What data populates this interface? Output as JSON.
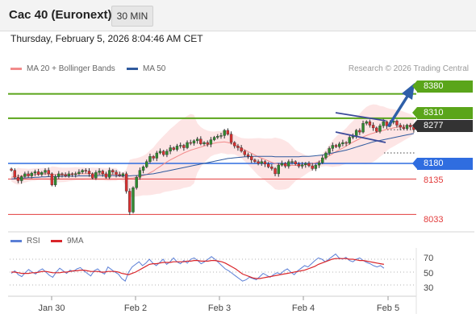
{
  "header": {
    "title": "Cac 40 (Euronext)",
    "timeframe": "30 MIN",
    "datetime": "Thursday, February 5, 2026 8:04:46 AM CET"
  },
  "legend": {
    "ma20_label": "MA 20 + Bollinger Bands",
    "ma50_label": "MA 50",
    "ma20_color": "#f28b8b",
    "ma50_color": "#2f5a9e",
    "copyright": "Research © 2026 Trading Central"
  },
  "rsi_legend": {
    "rsi_label": "RSI",
    "ma9_label": "9MA",
    "rsi_color": "#5b7fd6",
    "ma9_color": "#d9252a"
  },
  "chart_data": [
    {
      "type": "candlestick",
      "title": "Cac 40 (Euronext)",
      "x_ticks": [
        "Jan 30",
        "Feb 2",
        "Feb 3",
        "Feb 4",
        "Feb 5"
      ],
      "price_levels": [
        {
          "value": 8380,
          "label": "8380",
          "style": "green-tag",
          "color": "#5aa51a"
        },
        {
          "value": 8310,
          "label": "8310",
          "style": "green-tag",
          "color": "#5aa51a"
        },
        {
          "value": 8277,
          "label": "8277",
          "style": "last-price",
          "color": "#333333"
        },
        {
          "value": 8180,
          "label": "8180",
          "style": "blue-tag",
          "color": "#2f6de0"
        },
        {
          "value": 8135,
          "label": "8135",
          "style": "red-text",
          "color": "#e23b3b"
        },
        {
          "value": 8033,
          "label": "8033",
          "style": "red-text",
          "color": "#e23b3b"
        }
      ],
      "ylim": [
        7990,
        8430
      ],
      "close": [
        8160,
        8140,
        8130,
        8142,
        8150,
        8144,
        8152,
        8156,
        8148,
        8154,
        8160,
        8150,
        8118,
        8142,
        8150,
        8148,
        8144,
        8150,
        8148,
        8150,
        8155,
        8160,
        8158,
        8150,
        8138,
        8154,
        8158,
        8150,
        8140,
        8160,
        8155,
        8148,
        8145,
        8150,
        8100,
        8040,
        8110,
        8140,
        8160,
        8170,
        8185,
        8200,
        8195,
        8210,
        8215,
        8205,
        8215,
        8225,
        8220,
        8230,
        8232,
        8225,
        8240,
        8238,
        8245,
        8250,
        8236,
        8240,
        8235,
        8248,
        8255,
        8258,
        8260,
        8275,
        8264,
        8240,
        8230,
        8225,
        8215,
        8205,
        8200,
        8190,
        8185,
        8180,
        8185,
        8178,
        8170,
        8165,
        8150,
        8175,
        8180,
        8172,
        8185,
        8185,
        8178,
        8172,
        8176,
        8180,
        8173,
        8165,
        8175,
        8182,
        8196,
        8210,
        8223,
        8232,
        8228,
        8236,
        8240,
        8238,
        8255,
        8258,
        8275,
        8270,
        8295,
        8300,
        8290,
        8282,
        8272,
        8288,
        8300,
        8288,
        8298,
        8302,
        8290,
        8284,
        8280,
        8290,
        8285,
        8277
      ],
      "ma20": [
        8140,
        8142,
        8143,
        8144,
        8145,
        8146,
        8147,
        8148,
        8149,
        8150,
        8150,
        8149,
        8148,
        8148,
        8147,
        8147,
        8147,
        8148,
        8149,
        8150,
        8150,
        8150,
        8150,
        8150,
        8150,
        8149,
        8149,
        8149,
        8148,
        8148,
        8148,
        8148,
        8145,
        8141,
        8138,
        8137,
        8138,
        8140,
        8142,
        8145,
        8148,
        8153,
        8158,
        8165,
        8171,
        8178,
        8184,
        8190,
        8195,
        8200,
        8205,
        8210,
        8214,
        8218,
        8221,
        8224,
        8227,
        8230,
        8233,
        8236,
        8238,
        8240,
        8241,
        8242,
        8240,
        8237,
        8234,
        8229,
        8224,
        8219,
        8214,
        8209,
        8204,
        8199,
        8195,
        8191,
        8187,
        8183,
        8180,
        8178,
        8177,
        8175,
        8174,
        8174,
        8174,
        8174,
        8175,
        8176,
        8178,
        8180,
        8182,
        8185,
        8190,
        8196,
        8202,
        8208,
        8214,
        8219,
        8224,
        8230,
        8236,
        8241,
        8246,
        8251,
        8256,
        8260,
        8264,
        8267,
        8270,
        8272,
        8275,
        8278,
        8280,
        8282,
        8284,
        8286,
        8287,
        8288,
        8289,
        8290
      ],
      "ma50": [
        8135,
        8136,
        8137,
        8138,
        8138,
        8139,
        8139,
        8140,
        8140,
        8141,
        8141,
        8142,
        8142,
        8142,
        8142,
        8143,
        8143,
        8143,
        8143,
        8143,
        8144,
        8144,
        8144,
        8144,
        8144,
        8144,
        8145,
        8145,
        8145,
        8145,
        8145,
        8144,
        8144,
        8144,
        8144,
        8144,
        8145,
        8145,
        8146,
        8147,
        8148,
        8149,
        8150,
        8152,
        8154,
        8156,
        8158,
        8160,
        8162,
        8164,
        8166,
        8168,
        8170,
        8172,
        8174,
        8176,
        8178,
        8180,
        8182,
        8184,
        8186,
        8188,
        8190,
        8192,
        8194,
        8195,
        8196,
        8197,
        8198,
        8199,
        8199,
        8200,
        8200,
        8200,
        8200,
        8200,
        8200,
        8200,
        8199,
        8199,
        8199,
        8199,
        8199,
        8199,
        8199,
        8199,
        8200,
        8200,
        8200,
        8201,
        8202,
        8203,
        8204,
        8206,
        8208,
        8210,
        8212,
        8214,
        8216,
        8218,
        8221,
        8224,
        8227,
        8230,
        8233,
        8236,
        8239,
        8242,
        8244,
        8246,
        8248,
        8250,
        8252,
        8254,
        8256,
        8258,
        8260,
        8262,
        8264,
        8266
      ],
      "annotations": [
        "converging wedge lines",
        "bullish arrow toward 8380"
      ]
    },
    {
      "type": "line",
      "title": "RSI",
      "y_ticks": [
        70,
        50,
        30
      ],
      "ylim": [
        15,
        85
      ],
      "reference_lines": [
        70,
        50,
        30
      ],
      "series": [
        {
          "name": "RSI",
          "color": "#5b7fd6",
          "values": [
            48,
            52,
            46,
            43,
            49,
            54,
            50,
            47,
            52,
            55,
            50,
            45,
            42,
            50,
            56,
            52,
            48,
            53,
            51,
            55,
            57,
            52,
            48,
            44,
            52,
            55,
            50,
            47,
            58,
            54,
            50,
            47,
            40,
            36,
            50,
            58,
            62,
            66,
            60,
            64,
            70,
            64,
            60,
            65,
            70,
            62,
            66,
            72,
            66,
            63,
            68,
            64,
            70,
            72,
            68,
            63,
            66,
            70,
            74,
            70,
            65,
            60,
            55,
            52,
            48,
            44,
            40,
            36,
            38,
            42,
            40,
            38,
            43,
            48,
            45,
            42,
            46,
            49,
            47,
            52,
            55,
            50,
            46,
            52,
            56,
            60,
            58,
            63,
            68,
            72,
            70,
            66,
            70,
            74,
            78,
            72,
            70,
            73,
            68,
            66,
            70,
            72,
            68,
            65,
            63,
            60,
            58,
            60,
            56
          ]
        },
        {
          "name": "9MA",
          "color": "#d9252a",
          "values": [
            50,
            50,
            49,
            48,
            48,
            48,
            49,
            49,
            50,
            51,
            51,
            50,
            49,
            49,
            49,
            50,
            50,
            51,
            52,
            52,
            53,
            53,
            52,
            51,
            51,
            51,
            50,
            50,
            51,
            51,
            51,
            50,
            48,
            47,
            46,
            48,
            50,
            53,
            56,
            59,
            62,
            63,
            63,
            64,
            65,
            65,
            65,
            66,
            66,
            66,
            66,
            67,
            67,
            68,
            68,
            67,
            67,
            67,
            68,
            68,
            67,
            66,
            64,
            61,
            58,
            55,
            51,
            47,
            45,
            43,
            41,
            40,
            40,
            41,
            42,
            43,
            44,
            45,
            46,
            47,
            48,
            49,
            50,
            51,
            52,
            53,
            55,
            57,
            59,
            62,
            64,
            66,
            68,
            70,
            71,
            71,
            71,
            71,
            70,
            70,
            69,
            68,
            68,
            67,
            66,
            65,
            64,
            63,
            62
          ]
        }
      ]
    }
  ]
}
